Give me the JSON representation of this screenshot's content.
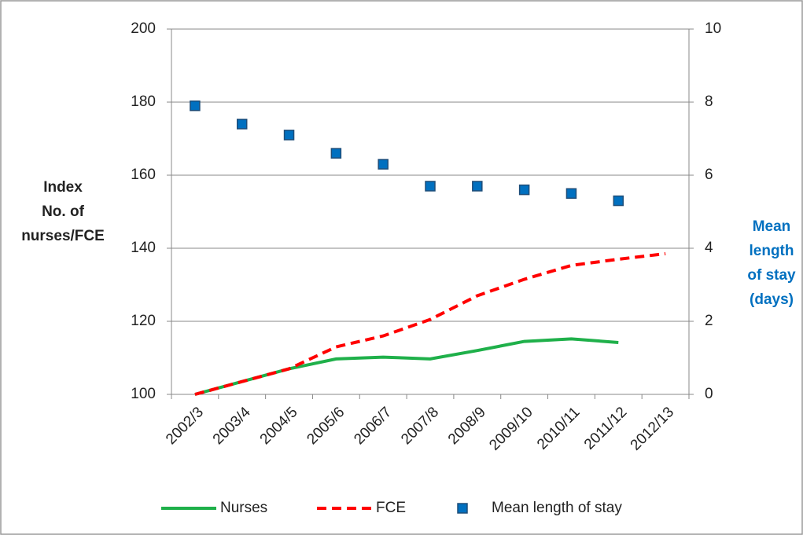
{
  "chart_data": {
    "type": "line",
    "ylabel": [
      "Index",
      "No. of",
      "nurses/FCE"
    ],
    "y2label": [
      "Mean",
      "length",
      "of stay",
      "(days)"
    ],
    "categories": [
      "2002/3",
      "2003/4",
      "2004/5",
      "2005/6",
      "2006/7",
      "2007/8",
      "2008/9",
      "2009/10",
      "2010/11",
      "2011/12",
      "2012/13"
    ],
    "series": [
      {
        "name": "Nurses",
        "color": "#1fb04a",
        "style": "solid",
        "values": [
          100,
          103.5,
          107,
          109.7,
          110.2,
          109.7,
          112,
          114.5,
          115.2,
          114.2,
          null
        ]
      },
      {
        "name": "FCE",
        "color": "#ff0000",
        "style": "dashed",
        "values": [
          100,
          103.5,
          107,
          113,
          116,
          120.5,
          127,
          131.5,
          135.3,
          137,
          138.5
        ]
      },
      {
        "name": "Mean length of stay",
        "color": "#0070c0",
        "style": "marker",
        "axis": "y2",
        "values": [
          7.9,
          7.4,
          7.1,
          6.6,
          6.3,
          5.7,
          5.7,
          5.6,
          5.5,
          5.3,
          null
        ]
      }
    ],
    "ylim": [
      100,
      200
    ],
    "yticks": [
      100,
      120,
      140,
      160,
      180,
      200
    ],
    "y2lim": [
      0,
      10
    ],
    "y2ticks": [
      0,
      2,
      4,
      6,
      8,
      10
    ],
    "grid": true,
    "legend": "bottom"
  }
}
